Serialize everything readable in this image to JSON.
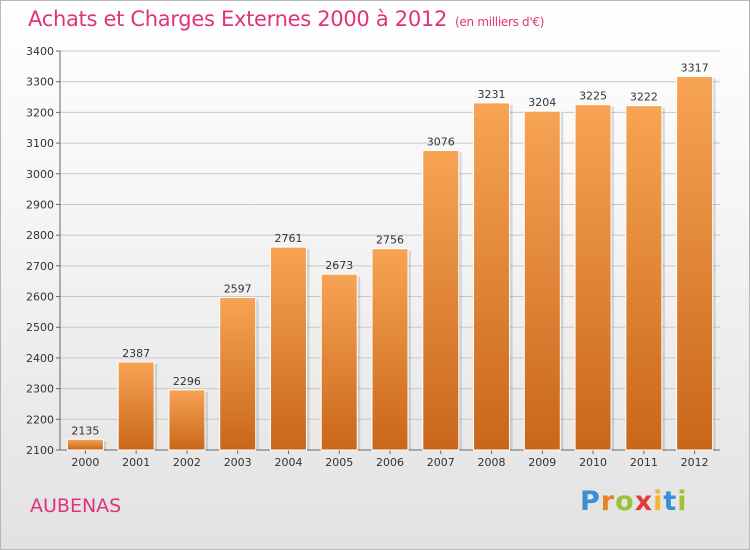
{
  "header": {
    "title": "Achats et Charges Externes 2000 à 2012",
    "unit": "(en milliers d'€)"
  },
  "footer": {
    "commune": "AUBENAS",
    "brand": "Proxiti"
  },
  "colors": {
    "title": "#e0337a",
    "bar_top": "#f7a454",
    "bar_bottom": "#c9661a",
    "grid": "#c8c8c8"
  },
  "chart_data": {
    "type": "bar",
    "title": "Achats et Charges Externes 2000 à 2012",
    "subtitle": "(en milliers d'€)",
    "xlabel": "",
    "ylabel": "",
    "categories": [
      "2000",
      "2001",
      "2002",
      "2003",
      "2004",
      "2005",
      "2006",
      "2007",
      "2008",
      "2009",
      "2010",
      "2011",
      "2012"
    ],
    "values": [
      2135,
      2387,
      2296,
      2597,
      2761,
      2673,
      2756,
      3076,
      3231,
      3204,
      3225,
      3222,
      3317
    ],
    "ylim": [
      2100,
      3400
    ],
    "yticks": [
      2100,
      2200,
      2300,
      2400,
      2500,
      2600,
      2700,
      2800,
      2900,
      3000,
      3100,
      3200,
      3300,
      3400
    ],
    "grid": true,
    "legend": "none"
  }
}
